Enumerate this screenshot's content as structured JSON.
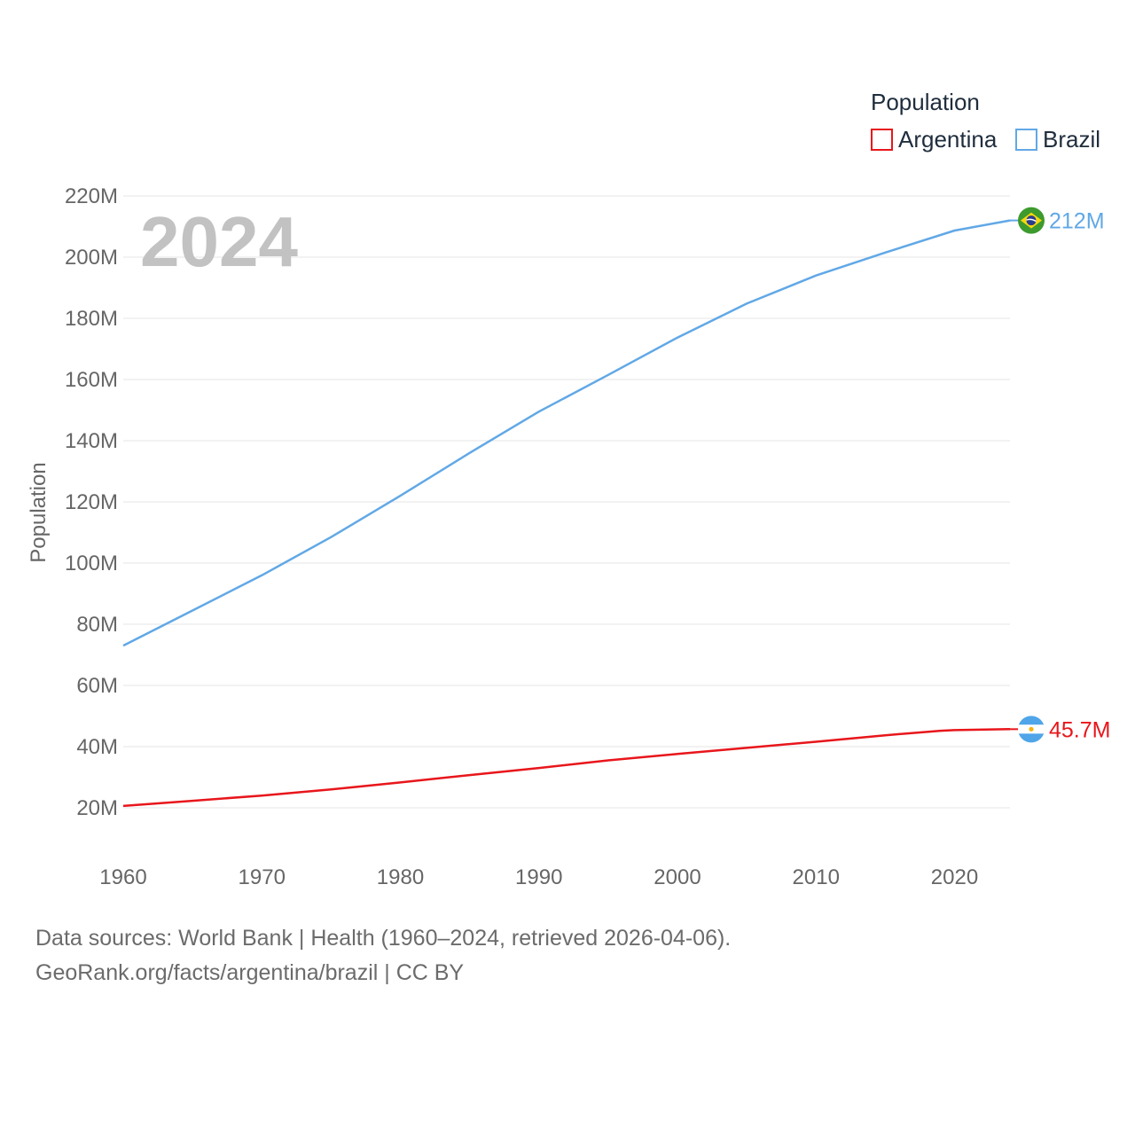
{
  "chart_data": {
    "type": "line",
    "year_label": "2024",
    "legend_title": "Population",
    "ylabel": "Population",
    "xlabel": "",
    "xlim": [
      1960,
      2024
    ],
    "ylim": [
      10000000,
      220000000
    ],
    "y_ticks": [
      {
        "value": 20000000,
        "label": "20M"
      },
      {
        "value": 40000000,
        "label": "40M"
      },
      {
        "value": 60000000,
        "label": "60M"
      },
      {
        "value": 80000000,
        "label": "80M"
      },
      {
        "value": 100000000,
        "label": "100M"
      },
      {
        "value": 120000000,
        "label": "120M"
      },
      {
        "value": 140000000,
        "label": "140M"
      },
      {
        "value": 160000000,
        "label": "160M"
      },
      {
        "value": 180000000,
        "label": "180M"
      },
      {
        "value": 200000000,
        "label": "200M"
      },
      {
        "value": 220000000,
        "label": "220M"
      }
    ],
    "x_ticks": [
      {
        "value": 1960,
        "label": "1960"
      },
      {
        "value": 1970,
        "label": "1970"
      },
      {
        "value": 1980,
        "label": "1980"
      },
      {
        "value": 1990,
        "label": "1990"
      },
      {
        "value": 2000,
        "label": "2000"
      },
      {
        "value": 2010,
        "label": "2010"
      },
      {
        "value": 2020,
        "label": "2020"
      }
    ],
    "series": [
      {
        "name": "Argentina",
        "color": "#e8161b",
        "flag": "argentina-flag-icon",
        "end_label": "45.7M",
        "x": [
          1960,
          1965,
          1970,
          1975,
          1980,
          1985,
          1990,
          1995,
          2000,
          2005,
          2010,
          2015,
          2019,
          2020,
          2024
        ],
        "values": [
          20600000,
          22300000,
          24000000,
          26000000,
          28300000,
          30700000,
          33000000,
          35500000,
          37600000,
          39600000,
          41600000,
          43700000,
          45200000,
          45400000,
          45700000
        ]
      },
      {
        "name": "Brazil",
        "color": "#61a8e6",
        "flag": "brazil-flag-icon",
        "end_label": "212M",
        "x": [
          1960,
          1965,
          1970,
          1975,
          1980,
          1985,
          1990,
          1995,
          2000,
          2005,
          2010,
          2015,
          2020,
          2024
        ],
        "values": [
          73000000,
          84500000,
          96000000,
          108500000,
          122000000,
          136000000,
          149500000,
          161500000,
          173700000,
          184800000,
          194000000,
          201500000,
          208700000,
          212000000
        ]
      }
    ]
  },
  "footer": {
    "line1": "Data sources: World Bank | Health (1960–2024, retrieved 2026-04-06).",
    "line2": "GeoRank.org/facts/argentina/brazil | CC BY"
  }
}
